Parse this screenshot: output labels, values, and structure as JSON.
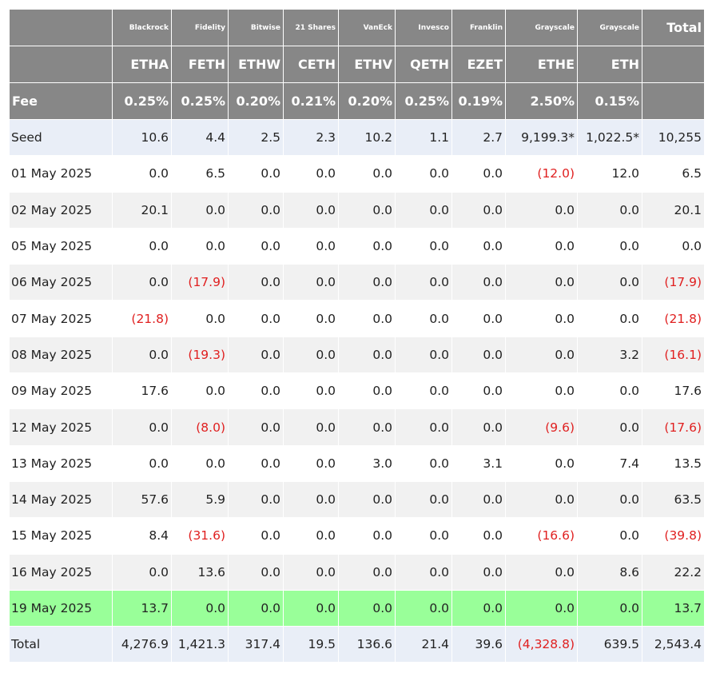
{
  "header": {
    "issuers": [
      "Blackrock",
      "Fidelity",
      "Bitwise",
      "21 Shares",
      "VanEck",
      "Invesco",
      "Franklin",
      "Grayscale",
      "Grayscale"
    ],
    "total_label": "Total",
    "tickers": [
      "ETHA",
      "FETH",
      "ETHW",
      "CETH",
      "ETHV",
      "QETH",
      "EZET",
      "ETHE",
      "ETH"
    ],
    "fee_label": "Fee",
    "fees": [
      "0.25%",
      "0.25%",
      "0.20%",
      "0.21%",
      "0.20%",
      "0.25%",
      "0.19%",
      "2.50%",
      "0.15%"
    ]
  },
  "rows": [
    {
      "label": "Seed",
      "values": [
        "10.6",
        "4.4",
        "2.5",
        "2.3",
        "10.2",
        "1.1",
        "2.7",
        "9,199.3*",
        "1,022.5*",
        "10,255"
      ]
    },
    {
      "label": "01 May 2025",
      "values": [
        "0.0",
        "6.5",
        "0.0",
        "0.0",
        "0.0",
        "0.0",
        "0.0",
        "(12.0)",
        "12.0",
        "6.5"
      ]
    },
    {
      "label": "02 May 2025",
      "values": [
        "20.1",
        "0.0",
        "0.0",
        "0.0",
        "0.0",
        "0.0",
        "0.0",
        "0.0",
        "0.0",
        "20.1"
      ]
    },
    {
      "label": "05 May 2025",
      "values": [
        "0.0",
        "0.0",
        "0.0",
        "0.0",
        "0.0",
        "0.0",
        "0.0",
        "0.0",
        "0.0",
        "0.0"
      ]
    },
    {
      "label": "06 May 2025",
      "values": [
        "0.0",
        "(17.9)",
        "0.0",
        "0.0",
        "0.0",
        "0.0",
        "0.0",
        "0.0",
        "0.0",
        "(17.9)"
      ]
    },
    {
      "label": "07 May 2025",
      "values": [
        "(21.8)",
        "0.0",
        "0.0",
        "0.0",
        "0.0",
        "0.0",
        "0.0",
        "0.0",
        "0.0",
        "(21.8)"
      ]
    },
    {
      "label": "08 May 2025",
      "values": [
        "0.0",
        "(19.3)",
        "0.0",
        "0.0",
        "0.0",
        "0.0",
        "0.0",
        "0.0",
        "3.2",
        "(16.1)"
      ]
    },
    {
      "label": "09 May 2025",
      "values": [
        "17.6",
        "0.0",
        "0.0",
        "0.0",
        "0.0",
        "0.0",
        "0.0",
        "0.0",
        "0.0",
        "17.6"
      ]
    },
    {
      "label": "12 May 2025",
      "values": [
        "0.0",
        "(8.0)",
        "0.0",
        "0.0",
        "0.0",
        "0.0",
        "0.0",
        "(9.6)",
        "0.0",
        "(17.6)"
      ]
    },
    {
      "label": "13 May 2025",
      "values": [
        "0.0",
        "0.0",
        "0.0",
        "0.0",
        "3.0",
        "0.0",
        "3.1",
        "0.0",
        "7.4",
        "13.5"
      ]
    },
    {
      "label": "14 May 2025",
      "values": [
        "57.6",
        "5.9",
        "0.0",
        "0.0",
        "0.0",
        "0.0",
        "0.0",
        "0.0",
        "0.0",
        "63.5"
      ]
    },
    {
      "label": "15 May 2025",
      "values": [
        "8.4",
        "(31.6)",
        "0.0",
        "0.0",
        "0.0",
        "0.0",
        "0.0",
        "(16.6)",
        "0.0",
        "(39.8)"
      ]
    },
    {
      "label": "16 May 2025",
      "values": [
        "0.0",
        "13.6",
        "0.0",
        "0.0",
        "0.0",
        "0.0",
        "0.0",
        "0.0",
        "8.6",
        "22.2"
      ]
    },
    {
      "label": "19 May 2025",
      "values": [
        "13.7",
        "0.0",
        "0.0",
        "0.0",
        "0.0",
        "0.0",
        "0.0",
        "0.0",
        "0.0",
        "13.7"
      ]
    },
    {
      "label": "Total",
      "values": [
        "4,276.9",
        "1,421.3",
        "317.4",
        "19.5",
        "136.6",
        "21.4",
        "39.6",
        "(4,328.8)",
        "639.5",
        "2,543.4"
      ]
    }
  ],
  "colors": {
    "header_bg": "#878787",
    "seed_bg": "#e9eef7",
    "alt_row_bg": "#f1f1f1",
    "highlight_bg": "#99ff99",
    "negative": "#e02020"
  }
}
